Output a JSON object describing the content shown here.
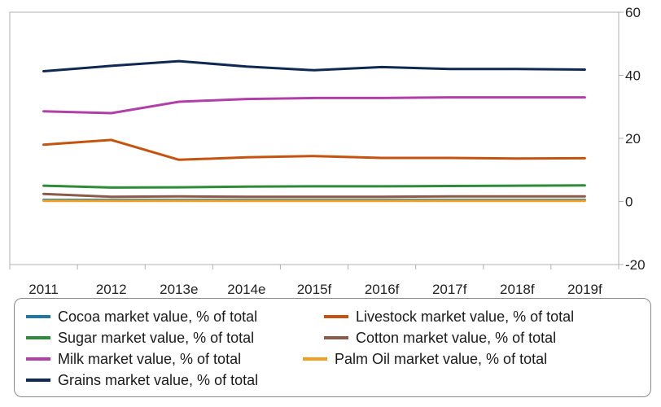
{
  "chart_data": {
    "type": "line",
    "title": "",
    "xlabel": "",
    "ylabel": "",
    "categories": [
      "2011",
      "2012",
      "2013e",
      "2014e",
      "2015f",
      "2016f",
      "2017f",
      "2018f",
      "2019f"
    ],
    "ylim": [
      -20,
      60
    ],
    "yticks": [
      "60",
      "40",
      "20",
      "0",
      "-20"
    ],
    "ytick_values": [
      60,
      40,
      20,
      0,
      -20
    ],
    "y_axis_side": "right",
    "legend_position": "bottom",
    "series": [
      {
        "name": "Cocoa market value, % of total",
        "color": "#1f77a4",
        "values": [
          0.5,
          0.5,
          0.5,
          0.5,
          0.5,
          0.5,
          0.5,
          0.5,
          0.5
        ]
      },
      {
        "name": "Livestock market value, % of total",
        "color": "#c5530f",
        "values": [
          18,
          19.5,
          13.2,
          14,
          14.4,
          13.8,
          13.8,
          13.6,
          13.7
        ]
      },
      {
        "name": "Sugar market value, % of total",
        "color": "#2e8b3a",
        "values": [
          5,
          4.4,
          4.5,
          4.7,
          4.8,
          4.8,
          4.9,
          5,
          5.1
        ]
      },
      {
        "name": "Cotton market value, % of total",
        "color": "#8b5a4a",
        "values": [
          2.4,
          1.5,
          1.6,
          1.5,
          1.5,
          1.5,
          1.6,
          1.6,
          1.6
        ]
      },
      {
        "name": "Milk market value, % of total",
        "color": "#b040a8",
        "values": [
          28.6,
          28,
          31.6,
          32.5,
          32.8,
          32.8,
          33,
          33,
          33
        ]
      },
      {
        "name": "Palm Oil market value, % of total",
        "color": "#f0a020",
        "values": [
          0.2,
          0.2,
          0.2,
          0.2,
          0.2,
          0.2,
          0.2,
          0.2,
          0.2
        ]
      },
      {
        "name": "Grains market value, % of total",
        "color": "#0f2a52",
        "values": [
          41.3,
          43,
          44.5,
          42.8,
          41.6,
          42.6,
          42,
          42,
          41.8
        ]
      }
    ],
    "legend_order": [
      0,
      1,
      2,
      3,
      4,
      5,
      6
    ]
  }
}
